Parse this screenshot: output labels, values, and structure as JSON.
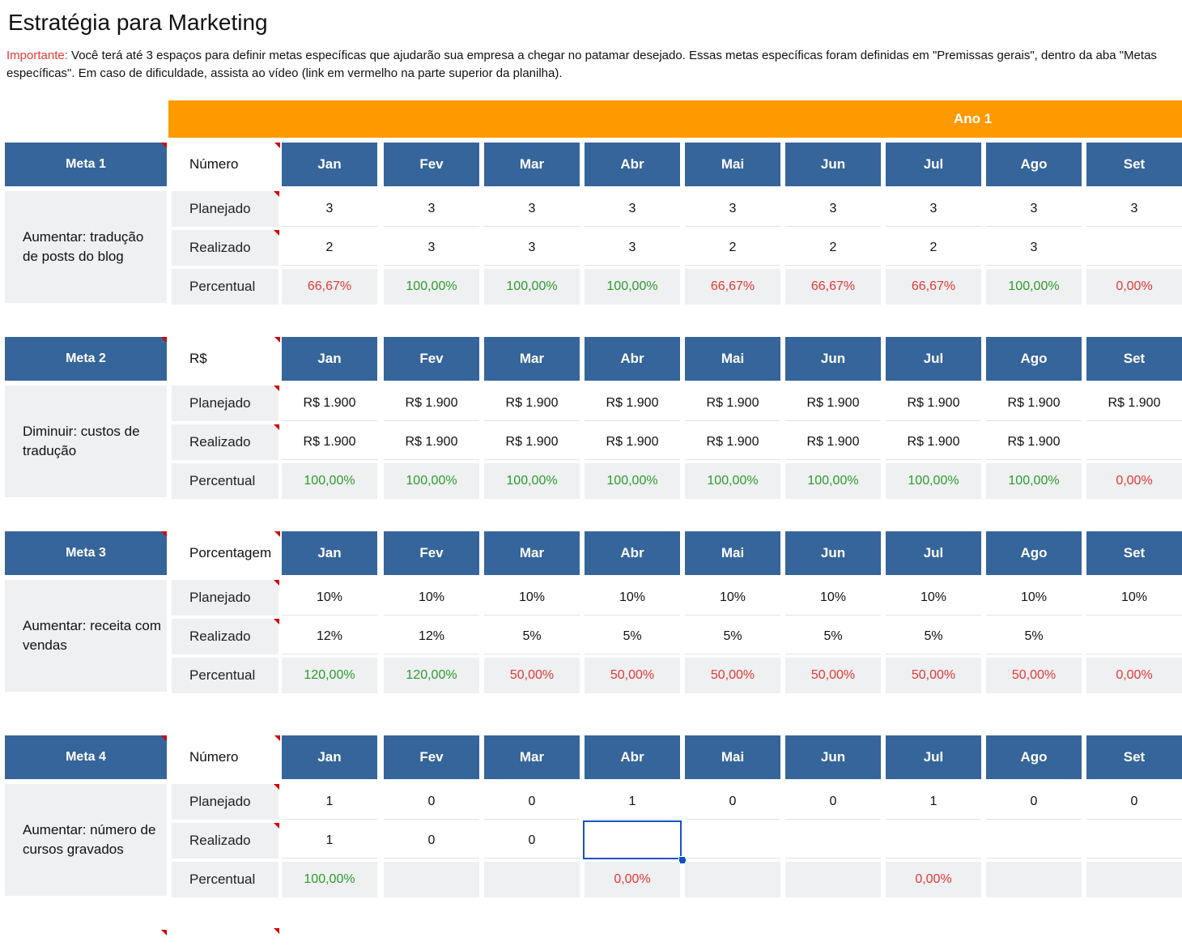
{
  "title": "Estratégia para Marketing",
  "note": {
    "important": "Importante:",
    "text": " Você terá até 3 espaços para definir metas específicas que ajudarão sua empresa a chegar no patamar desejado. Essas metas específicas foram definidas em \"Premissas gerais\", dentro da aba \"Metas específicas\". Em caso de dificuldade, assista ao vídeo (link em vermelho na parte superior da planilha)."
  },
  "year_label": "Ano 1",
  "months": [
    "Jan",
    "Fev",
    "Mar",
    "Abr",
    "Mai",
    "Jun",
    "Jul",
    "Ago",
    "Set"
  ],
  "row_labels": {
    "planned": "Planejado",
    "actual": "Realizado",
    "percent": "Percentual"
  },
  "colors": {
    "header_blue": "#35659a",
    "orange": "#ff9900",
    "green": "#2e9b2e",
    "red": "#e53935",
    "row_gray": "#eef0f1"
  },
  "metas": [
    {
      "name": "Meta 1",
      "unit": "Número",
      "description": "Aumentar: tradução de posts do blog",
      "planned": [
        "3",
        "3",
        "3",
        "3",
        "3",
        "3",
        "3",
        "3",
        "3"
      ],
      "actual": [
        "2",
        "3",
        "3",
        "3",
        "2",
        "2",
        "2",
        "3",
        ""
      ],
      "percent": [
        "66,67%",
        "100,00%",
        "100,00%",
        "100,00%",
        "66,67%",
        "66,67%",
        "66,67%",
        "100,00%",
        "0,00%"
      ]
    },
    {
      "name": "Meta 2",
      "unit": "R$",
      "description": "Diminuir: custos de tradução",
      "planned": [
        "R$ 1.900",
        "R$ 1.900",
        "R$ 1.900",
        "R$ 1.900",
        "R$ 1.900",
        "R$ 1.900",
        "R$ 1.900",
        "R$ 1.900",
        "R$ 1.900"
      ],
      "actual": [
        "R$ 1.900",
        "R$ 1.900",
        "R$ 1.900",
        "R$ 1.900",
        "R$ 1.900",
        "R$ 1.900",
        "R$ 1.900",
        "R$ 1.900",
        ""
      ],
      "percent": [
        "100,00%",
        "100,00%",
        "100,00%",
        "100,00%",
        "100,00%",
        "100,00%",
        "100,00%",
        "100,00%",
        "0,00%"
      ]
    },
    {
      "name": "Meta 3",
      "unit": "Porcentagem",
      "description": "Aumentar: receita com vendas",
      "planned": [
        "10%",
        "10%",
        "10%",
        "10%",
        "10%",
        "10%",
        "10%",
        "10%",
        "10%"
      ],
      "actual": [
        "12%",
        "12%",
        "5%",
        "5%",
        "5%",
        "5%",
        "5%",
        "5%",
        ""
      ],
      "percent": [
        "120,00%",
        "120,00%",
        "50,00%",
        "50,00%",
        "50,00%",
        "50,00%",
        "50,00%",
        "50,00%",
        "0,00%"
      ]
    },
    {
      "name": "Meta 4",
      "unit": "Número",
      "description": "Aumentar: número de cursos gravados",
      "planned": [
        "1",
        "0",
        "0",
        "1",
        "0",
        "0",
        "1",
        "0",
        "0"
      ],
      "actual": [
        "1",
        "0",
        "0",
        "",
        "",
        "",
        "",
        "",
        ""
      ],
      "percent": [
        "100,00%",
        "",
        "",
        "0,00%",
        "",
        "",
        "0,00%",
        "",
        ""
      ]
    }
  ],
  "selected_cell": {
    "meta": 4,
    "row": "Realizado",
    "month": "Abr"
  }
}
